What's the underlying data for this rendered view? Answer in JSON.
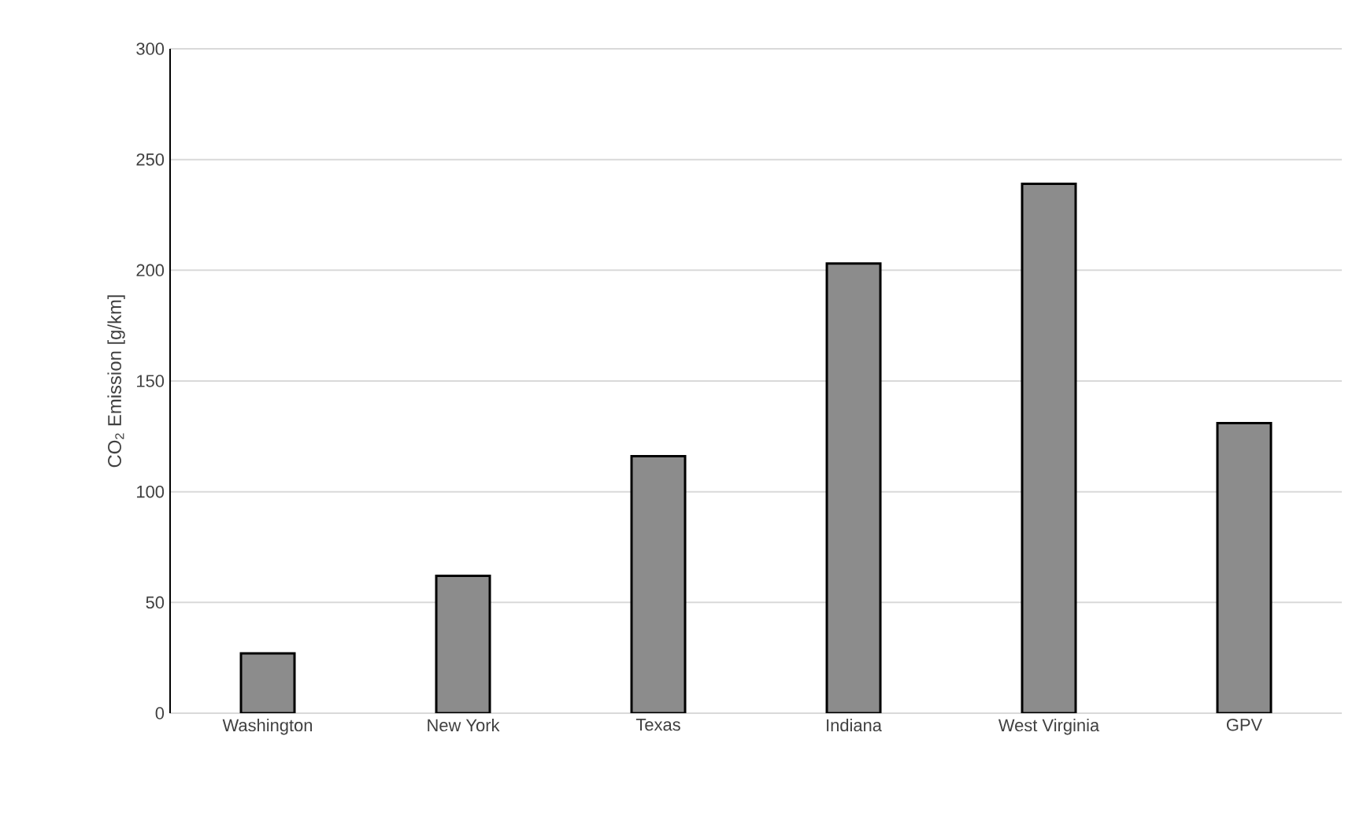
{
  "chart_data": {
    "type": "bar",
    "ylabel": "CO$_{2}$ Emission [g/km]",
    "categories": [
      "Washington",
      "New York",
      "Texas",
      "Indiana",
      "West Virginia",
      "GPV"
    ],
    "values": [
      27,
      62,
      116,
      203,
      239,
      131
    ],
    "color": "#8c8c8c",
    "ylim": [
      0,
      300
    ],
    "yticks": [
      0,
      50,
      100,
      150,
      200,
      250,
      300
    ],
    "grid": "y"
  }
}
